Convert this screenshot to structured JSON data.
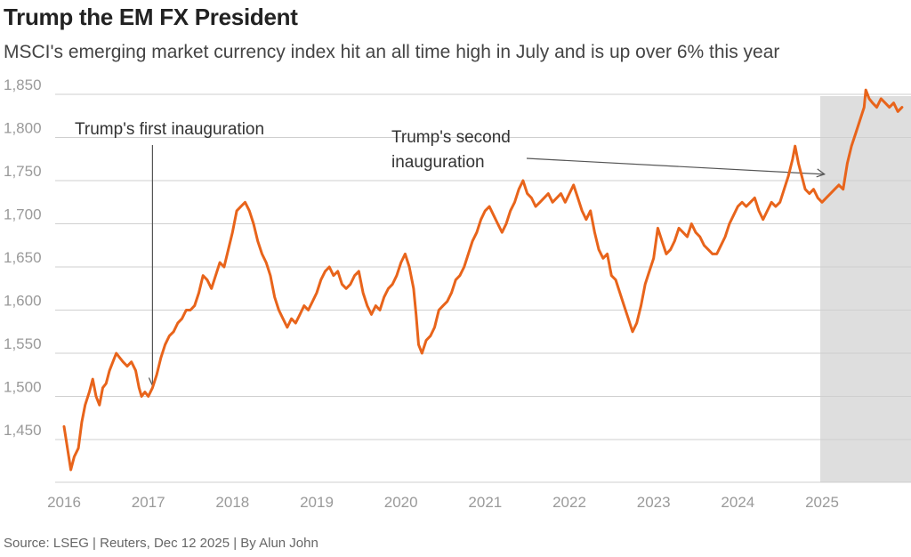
{
  "title": "Trump the EM FX President",
  "subtitle": "MSCI's emerging market currency index hit an all time high in July and is up over 6% this year",
  "source": "Source: LSEG | Reuters, Dec 12 2025 | By Alun John",
  "colors": {
    "line": "#e8641b",
    "grid": "#cfcfcf",
    "shade": "#dedede",
    "axis_text": "#9a9a9a",
    "annotation": "#555555"
  },
  "chart_data": {
    "type": "line",
    "title": "Trump the EM FX President",
    "subtitle": "MSCI's emerging market currency index hit an all time high in July and is up over 6% this year",
    "xlabel": "",
    "ylabel": "",
    "xlim": [
      2016.0,
      2026.0
    ],
    "ylim": [
      1405,
      1855
    ],
    "y_ticks": [
      1450,
      1500,
      1550,
      1600,
      1650,
      1700,
      1750,
      1800,
      1850
    ],
    "y_tick_labels": [
      "1,450",
      "1,500",
      "1,550",
      "1,600",
      "1,650",
      "1,700",
      "1,750",
      "1,800",
      "1,850"
    ],
    "x_ticks": [
      2016,
      2017,
      2018,
      2019,
      2020,
      2021,
      2022,
      2023,
      2024,
      2025
    ],
    "x_tick_labels": [
      "2016",
      "2017",
      "2018",
      "2019",
      "2020",
      "2021",
      "2022",
      "2023",
      "2024",
      "2025"
    ],
    "grid": "horizontal",
    "shaded_range": [
      2025.0,
      2026.0
    ],
    "annotations": [
      {
        "text": [
          "Trump's first inauguration"
        ],
        "x": 2017.05,
        "y": 1500
      },
      {
        "text": [
          "Trump's second",
          "inauguration"
        ],
        "x": 2025.05,
        "y": 1745
      }
    ],
    "series": [
      {
        "values": [
          [
            2016.0,
            1465
          ],
          [
            2016.04,
            1440
          ],
          [
            2016.08,
            1415
          ],
          [
            2016.12,
            1430
          ],
          [
            2016.17,
            1440
          ],
          [
            2016.21,
            1470
          ],
          [
            2016.25,
            1490
          ],
          [
            2016.3,
            1505
          ],
          [
            2016.34,
            1520
          ],
          [
            2016.38,
            1500
          ],
          [
            2016.42,
            1490
          ],
          [
            2016.46,
            1510
          ],
          [
            2016.5,
            1515
          ],
          [
            2016.54,
            1530
          ],
          [
            2016.58,
            1540
          ],
          [
            2016.62,
            1550
          ],
          [
            2016.66,
            1545
          ],
          [
            2016.7,
            1540
          ],
          [
            2016.75,
            1535
          ],
          [
            2016.8,
            1540
          ],
          [
            2016.85,
            1530
          ],
          [
            2016.89,
            1510
          ],
          [
            2016.92,
            1500
          ],
          [
            2016.96,
            1505
          ],
          [
            2017.0,
            1500
          ],
          [
            2017.05,
            1510
          ],
          [
            2017.1,
            1525
          ],
          [
            2017.15,
            1545
          ],
          [
            2017.2,
            1560
          ],
          [
            2017.25,
            1570
          ],
          [
            2017.3,
            1575
          ],
          [
            2017.35,
            1585
          ],
          [
            2017.4,
            1590
          ],
          [
            2017.45,
            1600
          ],
          [
            2017.5,
            1600
          ],
          [
            2017.55,
            1605
          ],
          [
            2017.6,
            1620
          ],
          [
            2017.65,
            1640
          ],
          [
            2017.7,
            1635
          ],
          [
            2017.75,
            1625
          ],
          [
            2017.8,
            1640
          ],
          [
            2017.85,
            1655
          ],
          [
            2017.9,
            1650
          ],
          [
            2017.95,
            1670
          ],
          [
            2018.0,
            1690
          ],
          [
            2018.05,
            1715
          ],
          [
            2018.1,
            1720
          ],
          [
            2018.15,
            1725
          ],
          [
            2018.2,
            1715
          ],
          [
            2018.25,
            1700
          ],
          [
            2018.3,
            1680
          ],
          [
            2018.35,
            1665
          ],
          [
            2018.4,
            1655
          ],
          [
            2018.45,
            1640
          ],
          [
            2018.5,
            1615
          ],
          [
            2018.55,
            1600
          ],
          [
            2018.6,
            1590
          ],
          [
            2018.65,
            1580
          ],
          [
            2018.7,
            1590
          ],
          [
            2018.75,
            1585
          ],
          [
            2018.8,
            1595
          ],
          [
            2018.85,
            1605
          ],
          [
            2018.9,
            1600
          ],
          [
            2018.95,
            1610
          ],
          [
            2019.0,
            1620
          ],
          [
            2019.05,
            1635
          ],
          [
            2019.1,
            1645
          ],
          [
            2019.15,
            1650
          ],
          [
            2019.2,
            1640
          ],
          [
            2019.25,
            1645
          ],
          [
            2019.3,
            1630
          ],
          [
            2019.35,
            1625
          ],
          [
            2019.4,
            1630
          ],
          [
            2019.45,
            1640
          ],
          [
            2019.5,
            1645
          ],
          [
            2019.55,
            1620
          ],
          [
            2019.6,
            1605
          ],
          [
            2019.65,
            1595
          ],
          [
            2019.7,
            1605
          ],
          [
            2019.75,
            1600
          ],
          [
            2019.8,
            1615
          ],
          [
            2019.85,
            1625
          ],
          [
            2019.9,
            1630
          ],
          [
            2019.95,
            1640
          ],
          [
            2020.0,
            1655
          ],
          [
            2020.05,
            1665
          ],
          [
            2020.1,
            1650
          ],
          [
            2020.15,
            1625
          ],
          [
            2020.18,
            1595
          ],
          [
            2020.21,
            1560
          ],
          [
            2020.25,
            1550
          ],
          [
            2020.3,
            1565
          ],
          [
            2020.35,
            1570
          ],
          [
            2020.4,
            1580
          ],
          [
            2020.45,
            1600
          ],
          [
            2020.5,
            1605
          ],
          [
            2020.55,
            1610
          ],
          [
            2020.6,
            1620
          ],
          [
            2020.65,
            1635
          ],
          [
            2020.7,
            1640
          ],
          [
            2020.75,
            1650
          ],
          [
            2020.8,
            1665
          ],
          [
            2020.85,
            1680
          ],
          [
            2020.9,
            1690
          ],
          [
            2020.95,
            1705
          ],
          [
            2021.0,
            1715
          ],
          [
            2021.05,
            1720
          ],
          [
            2021.1,
            1710
          ],
          [
            2021.15,
            1700
          ],
          [
            2021.2,
            1690
          ],
          [
            2021.25,
            1700
          ],
          [
            2021.3,
            1715
          ],
          [
            2021.35,
            1725
          ],
          [
            2021.4,
            1740
          ],
          [
            2021.45,
            1750
          ],
          [
            2021.5,
            1735
          ],
          [
            2021.55,
            1730
          ],
          [
            2021.6,
            1720
          ],
          [
            2021.65,
            1725
          ],
          [
            2021.7,
            1730
          ],
          [
            2021.75,
            1735
          ],
          [
            2021.8,
            1725
          ],
          [
            2021.85,
            1730
          ],
          [
            2021.9,
            1735
          ],
          [
            2021.95,
            1725
          ],
          [
            2022.0,
            1735
          ],
          [
            2022.05,
            1745
          ],
          [
            2022.1,
            1730
          ],
          [
            2022.15,
            1715
          ],
          [
            2022.2,
            1705
          ],
          [
            2022.25,
            1715
          ],
          [
            2022.3,
            1690
          ],
          [
            2022.35,
            1670
          ],
          [
            2022.4,
            1660
          ],
          [
            2022.45,
            1665
          ],
          [
            2022.5,
            1640
          ],
          [
            2022.55,
            1635
          ],
          [
            2022.6,
            1620
          ],
          [
            2022.65,
            1605
          ],
          [
            2022.7,
            1590
          ],
          [
            2022.75,
            1575
          ],
          [
            2022.8,
            1585
          ],
          [
            2022.85,
            1605
          ],
          [
            2022.9,
            1630
          ],
          [
            2022.95,
            1645
          ],
          [
            2023.0,
            1660
          ],
          [
            2023.05,
            1695
          ],
          [
            2023.1,
            1680
          ],
          [
            2023.15,
            1665
          ],
          [
            2023.2,
            1670
          ],
          [
            2023.25,
            1680
          ],
          [
            2023.3,
            1695
          ],
          [
            2023.35,
            1690
          ],
          [
            2023.4,
            1685
          ],
          [
            2023.45,
            1700
          ],
          [
            2023.5,
            1690
          ],
          [
            2023.55,
            1685
          ],
          [
            2023.6,
            1675
          ],
          [
            2023.65,
            1670
          ],
          [
            2023.7,
            1665
          ],
          [
            2023.75,
            1665
          ],
          [
            2023.8,
            1675
          ],
          [
            2023.85,
            1685
          ],
          [
            2023.9,
            1700
          ],
          [
            2023.95,
            1710
          ],
          [
            2024.0,
            1720
          ],
          [
            2024.05,
            1725
          ],
          [
            2024.1,
            1720
          ],
          [
            2024.15,
            1725
          ],
          [
            2024.2,
            1730
          ],
          [
            2024.25,
            1715
          ],
          [
            2024.3,
            1705
          ],
          [
            2024.35,
            1715
          ],
          [
            2024.4,
            1725
          ],
          [
            2024.45,
            1720
          ],
          [
            2024.5,
            1725
          ],
          [
            2024.55,
            1740
          ],
          [
            2024.6,
            1755
          ],
          [
            2024.65,
            1775
          ],
          [
            2024.68,
            1790
          ],
          [
            2024.72,
            1770
          ],
          [
            2024.76,
            1755
          ],
          [
            2024.8,
            1740
          ],
          [
            2024.85,
            1735
          ],
          [
            2024.9,
            1740
          ],
          [
            2024.95,
            1730
          ],
          [
            2025.0,
            1725
          ],
          [
            2025.05,
            1730
          ],
          [
            2025.1,
            1735
          ],
          [
            2025.15,
            1740
          ],
          [
            2025.2,
            1745
          ],
          [
            2025.25,
            1740
          ],
          [
            2025.3,
            1770
          ],
          [
            2025.35,
            1790
          ],
          [
            2025.4,
            1805
          ],
          [
            2025.45,
            1820
          ],
          [
            2025.5,
            1835
          ],
          [
            2025.52,
            1855
          ],
          [
            2025.56,
            1845
          ],
          [
            2025.6,
            1840
          ],
          [
            2025.65,
            1835
          ],
          [
            2025.7,
            1845
          ],
          [
            2025.75,
            1840
          ],
          [
            2025.8,
            1835
          ],
          [
            2025.85,
            1840
          ],
          [
            2025.9,
            1830
          ],
          [
            2025.95,
            1835
          ]
        ]
      }
    ]
  }
}
